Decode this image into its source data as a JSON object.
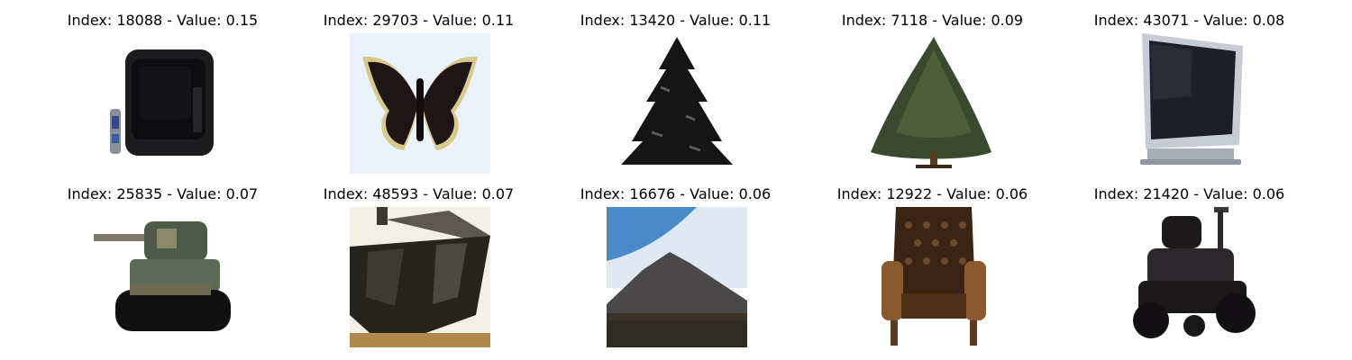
{
  "grid": {
    "images": [
      {
        "title": "Index: 18088 - Value: 0.15",
        "index": 18088,
        "value": 0.15,
        "subject": "crt-television-with-remote",
        "icon": "tv-icon"
      },
      {
        "title": "Index: 29703 - Value: 0.11",
        "index": 29703,
        "value": 0.11,
        "subject": "butterfly",
        "icon": "butterfly-icon"
      },
      {
        "title": "Index: 13420 - Value: 0.11",
        "index": 13420,
        "value": 0.11,
        "subject": "dark-pine-tree",
        "icon": "pine-tree-icon"
      },
      {
        "title": "Index: 7118 - Value: 0.09",
        "index": 7118,
        "value": 0.09,
        "subject": "evergreen-tree",
        "icon": "tree-icon"
      },
      {
        "title": "Index: 43071 - Value: 0.08",
        "index": 43071,
        "value": 0.08,
        "subject": "flat-screen-monitor",
        "icon": "monitor-icon"
      },
      {
        "title": "Index: 25835 - Value: 0.07",
        "index": 25835,
        "value": 0.07,
        "subject": "toy-tank",
        "icon": "tank-icon"
      },
      {
        "title": "Index: 48593 - Value: 0.07",
        "index": 48593,
        "value": 0.07,
        "subject": "tank-closeup",
        "icon": "tank-closeup-icon"
      },
      {
        "title": "Index: 16676 - Value: 0.06",
        "index": 16676,
        "value": 0.06,
        "subject": "mountain",
        "icon": "mountain-icon"
      },
      {
        "title": "Index: 12922 - Value: 0.06",
        "index": 12922,
        "value": 0.06,
        "subject": "wingback-chair",
        "icon": "chair-icon"
      },
      {
        "title": "Index: 21420 - Value: 0.06",
        "index": 21420,
        "value": 0.06,
        "subject": "riding-lawn-mower",
        "icon": "lawn-mower-icon"
      }
    ]
  }
}
